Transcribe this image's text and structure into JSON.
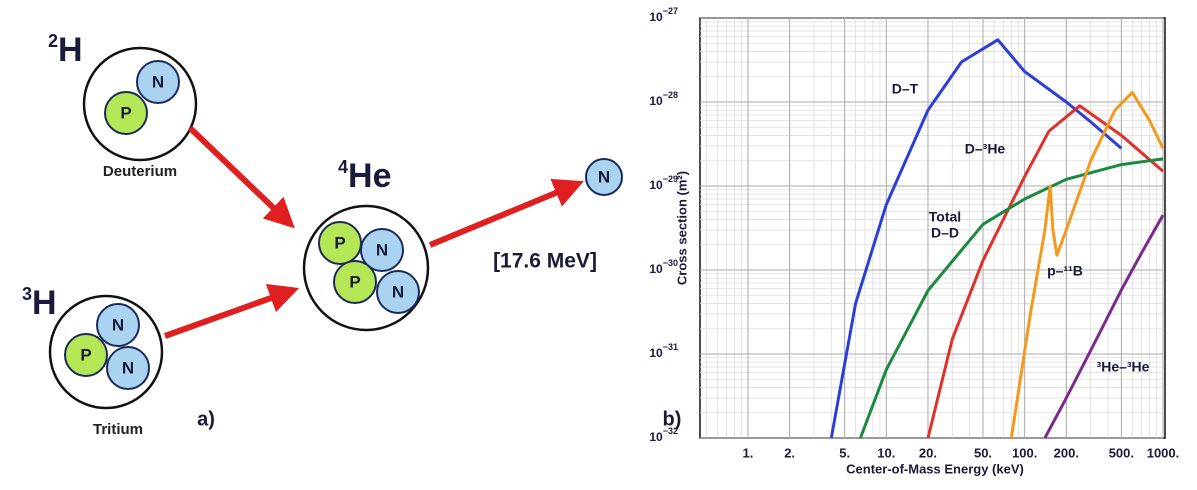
{
  "diagram": {
    "nodes": [
      {
        "mass": "2",
        "symbol": "H",
        "name": "Deuterium",
        "particles": [
          "N",
          "P"
        ]
      },
      {
        "mass": "3",
        "symbol": "H",
        "name": "Tritium",
        "particles": [
          "N",
          "P",
          "N"
        ]
      },
      {
        "mass": "4",
        "symbol": "He",
        "particles": [
          "P",
          "N",
          "P",
          "N"
        ]
      },
      {
        "particles": [
          "N"
        ]
      }
    ],
    "energy": "[17.6 MeV]",
    "panel_label": "a)"
  },
  "chart_data": {
    "type": "line",
    "panel_label": "b)",
    "x_label": "Center-of-Mass Energy (keV)",
    "y_label": "Cross section (m²)",
    "log_x": true,
    "log_y": true,
    "grid": true,
    "xlim": [
      0.45,
      1000
    ],
    "xticks": [
      {
        "value": 1,
        "label": "1."
      },
      {
        "value": 2,
        "label": "2."
      },
      {
        "value": 5,
        "label": "5."
      },
      {
        "value": 10,
        "label": "10."
      },
      {
        "value": 20,
        "label": "20."
      },
      {
        "value": 50,
        "label": "50."
      },
      {
        "value": 100,
        "label": "100."
      },
      {
        "value": 200,
        "label": "200."
      },
      {
        "value": 500,
        "label": "500."
      },
      {
        "value": 1000,
        "label": "1000."
      }
    ],
    "ylim": [
      1e-32,
      1e-27
    ],
    "yticks": [
      {
        "value": 1e-32,
        "label": "10",
        "exponent": "−32"
      },
      {
        "value": 1e-31,
        "label": "10",
        "exponent": "−31"
      },
      {
        "value": 1e-30,
        "label": "10",
        "exponent": "−30"
      },
      {
        "value": 1e-29,
        "label": "10",
        "exponent": "−29"
      },
      {
        "value": 1e-28,
        "label": "10",
        "exponent": "−28"
      },
      {
        "value": 1e-27,
        "label": "10",
        "exponent": "−27"
      }
    ],
    "series": [
      {
        "label": [
          "D–T"
        ],
        "color": "#2b3fd8",
        "x": [
          4,
          6,
          10,
          20,
          35,
          64,
          100,
          200,
          300,
          500
        ],
        "values": [
          1e-32,
          4e-31,
          6e-30,
          8e-29,
          3e-28,
          5.5e-28,
          2.3e-28,
          1e-28,
          5.8e-29,
          2.8e-29
        ]
      },
      {
        "label": [
          "D–³He"
        ],
        "color": "#e0302a",
        "x": [
          20,
          30,
          50,
          100,
          150,
          250,
          500,
          1000
        ],
        "values": [
          1e-32,
          1.5e-31,
          1.3e-30,
          1.3e-29,
          4.5e-29,
          9e-29,
          4e-29,
          1.5e-29
        ]
      },
      {
        "label": [
          "Total",
          "D–D"
        ],
        "color": "#1a8a3e",
        "x": [
          6.5,
          10,
          20,
          50,
          100,
          200,
          500,
          1000
        ],
        "values": [
          1e-32,
          6.5e-32,
          5.7e-31,
          3.5e-30,
          7e-30,
          1.2e-29,
          1.8e-29,
          2.1e-29
        ]
      },
      {
        "label": [
          "p–¹¹B"
        ],
        "color": "#f39a1e",
        "x": [
          80,
          110,
          140,
          153,
          160,
          171,
          200,
          300,
          450,
          600,
          800,
          1000
        ],
        "values": [
          1e-32,
          3e-31,
          3e-30,
          1e-29,
          3e-30,
          1.5e-30,
          3e-30,
          2e-29,
          8e-29,
          1.3e-28,
          6e-29,
          2.8e-29
        ]
      },
      {
        "label": [
          "³He–³He"
        ],
        "color": "#7b2a8c",
        "x": [
          140,
          200,
          300,
          500,
          700,
          1000
        ],
        "values": [
          1e-32,
          3e-32,
          1.1e-31,
          5.8e-31,
          1.6e-30,
          4.5e-30
        ]
      }
    ]
  }
}
